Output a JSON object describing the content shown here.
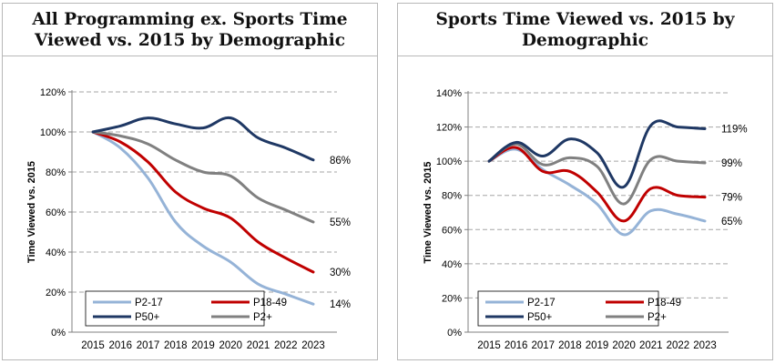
{
  "chart_data": [
    {
      "type": "line",
      "title": "All Programming ex. Sports Time Viewed vs. 2015 by Demographic",
      "ylabel": "Time Viewed vs. 2015",
      "xlabel": "",
      "x": [
        "2015",
        "2016",
        "2017",
        "2018",
        "2019",
        "2020",
        "2021",
        "2022",
        "2023"
      ],
      "ylim": [
        0,
        120
      ],
      "yticks": [
        "0%",
        "20%",
        "40%",
        "60%",
        "80%",
        "100%",
        "120%"
      ],
      "grid": "horizontal dashed",
      "legend_placement": "bottom-left",
      "legend": [
        "P2-17",
        "P18-49",
        "P50+",
        "P2+"
      ],
      "series": [
        {
          "name": "P2-17",
          "color": "#95b3d7",
          "values": [
            100,
            92,
            77,
            55,
            43,
            35,
            24,
            19,
            14
          ],
          "end_label": "14%"
        },
        {
          "name": "P18-49",
          "color": "#c00000",
          "values": [
            100,
            95,
            85,
            70,
            62,
            57,
            45,
            37,
            30
          ],
          "end_label": "30%"
        },
        {
          "name": "P50+",
          "color": "#1f3864",
          "values": [
            100,
            103,
            107,
            104,
            102,
            107,
            97,
            92,
            86
          ],
          "end_label": "86%"
        },
        {
          "name": "P2+",
          "color": "#808080",
          "values": [
            100,
            98,
            94,
            86,
            80,
            78,
            67,
            61,
            55
          ],
          "end_label": "55%"
        }
      ]
    },
    {
      "type": "line",
      "title": "Sports Time Viewed vs. 2015 by Demographic",
      "ylabel": "Time Viewed vs. 2015",
      "xlabel": "",
      "x": [
        "2015",
        "2016",
        "2017",
        "2018",
        "2019",
        "2020",
        "2021",
        "2022",
        "2023"
      ],
      "ylim": [
        0,
        140
      ],
      "yticks": [
        "0%",
        "20%",
        "40%",
        "60%",
        "80%",
        "100%",
        "120%",
        "140%"
      ],
      "grid": "horizontal dashed",
      "legend_placement": "bottom-left",
      "legend": [
        "P2-17",
        "P18-49",
        "P50+",
        "P2+"
      ],
      "series": [
        {
          "name": "P2-17",
          "color": "#95b3d7",
          "values": [
            100,
            107,
            95,
            86,
            75,
            57,
            71,
            69,
            65
          ],
          "end_label": "65%"
        },
        {
          "name": "P18-49",
          "color": "#c00000",
          "values": [
            100,
            108,
            94,
            94,
            82,
            65,
            84,
            80,
            79
          ],
          "end_label": "79%"
        },
        {
          "name": "P50+",
          "color": "#1f3864",
          "values": [
            100,
            111,
            103,
            113,
            105,
            85,
            121,
            120,
            119
          ],
          "end_label": "119%"
        },
        {
          "name": "P2+",
          "color": "#808080",
          "values": [
            100,
            110,
            98,
            102,
            97,
            75,
            101,
            100,
            99
          ],
          "end_label": "99%"
        }
      ]
    }
  ]
}
